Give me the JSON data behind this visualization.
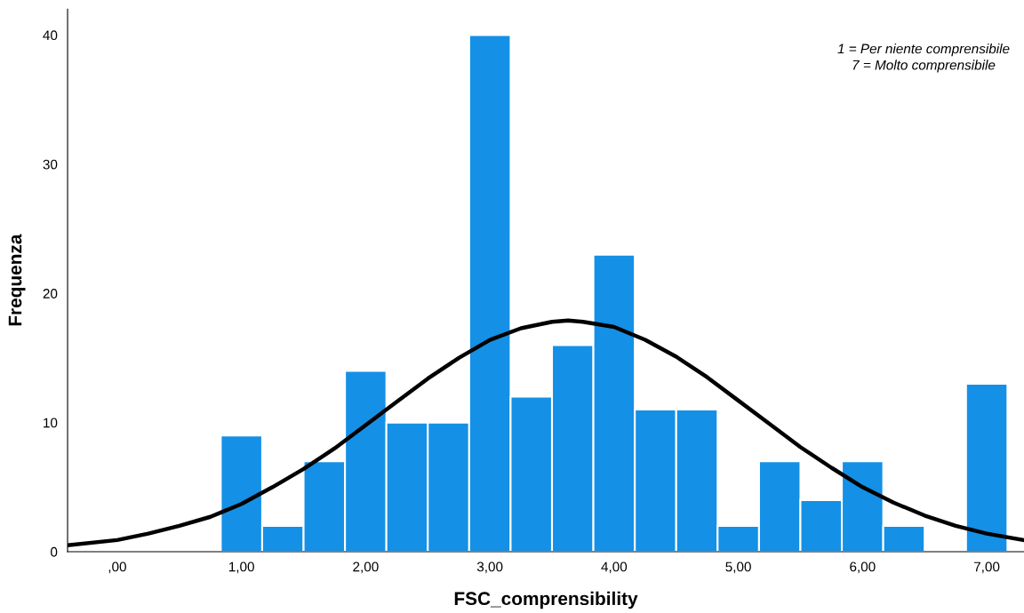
{
  "chart_data": {
    "type": "histogram",
    "xlabel": "FSC_comprensibility",
    "ylabel": "Frequenza",
    "bins": [
      0.8333,
      1.1667,
      1.5,
      1.8333,
      2.1667,
      2.5,
      2.8333,
      3.1667,
      3.5,
      3.8333,
      4.1667,
      4.5,
      4.8333,
      5.1667,
      5.5,
      5.8333,
      6.1667,
      6.5,
      6.8333,
      7.1667
    ],
    "values": [
      9,
      2,
      7,
      14,
      10,
      10,
      40,
      12,
      16,
      23,
      11,
      11,
      2,
      7,
      4,
      7,
      2,
      0,
      13
    ],
    "color": "#1490e6",
    "series": [
      {
        "type": "line",
        "color": "#000000",
        "x": [
          -0.4,
          0,
          0.25,
          0.5,
          0.75,
          1,
          1.25,
          1.5,
          1.75,
          2,
          2.25,
          2.5,
          2.75,
          3,
          3.25,
          3.5,
          3.63,
          3.75,
          4,
          4.25,
          4.5,
          4.75,
          5,
          5.25,
          5.5,
          5.75,
          6,
          6.25,
          6.5,
          6.75,
          7,
          7.3
        ],
        "values": [
          0.5,
          0.9,
          1.4,
          2.0,
          2.7,
          3.7,
          5.0,
          6.4,
          8.0,
          9.8,
          11.6,
          13.4,
          15.0,
          16.4,
          17.3,
          17.8,
          17.9,
          17.8,
          17.4,
          16.4,
          15.1,
          13.5,
          11.7,
          9.9,
          8.1,
          6.5,
          5.0,
          3.8,
          2.8,
          2.0,
          1.4,
          0.9
        ]
      }
    ],
    "xlim": [
      -0.4,
      7.3
    ],
    "ylim": [
      0,
      42
    ],
    "xticks": [
      {
        "value": 0,
        "label": ",00"
      },
      {
        "value": 1,
        "label": "1,00"
      },
      {
        "value": 2,
        "label": "2,00"
      },
      {
        "value": 3,
        "label": "3,00"
      },
      {
        "value": 4,
        "label": "4,00"
      },
      {
        "value": 5,
        "label": "5,00"
      },
      {
        "value": 6,
        "label": "6,00"
      },
      {
        "value": 7,
        "label": "7,00"
      }
    ],
    "yticks": [
      0,
      10,
      20,
      30,
      40
    ],
    "annotations": [
      "1 = Per niente comprensibile",
      "7 = Molto comprensibile"
    ],
    "grid": false,
    "legend": false
  }
}
